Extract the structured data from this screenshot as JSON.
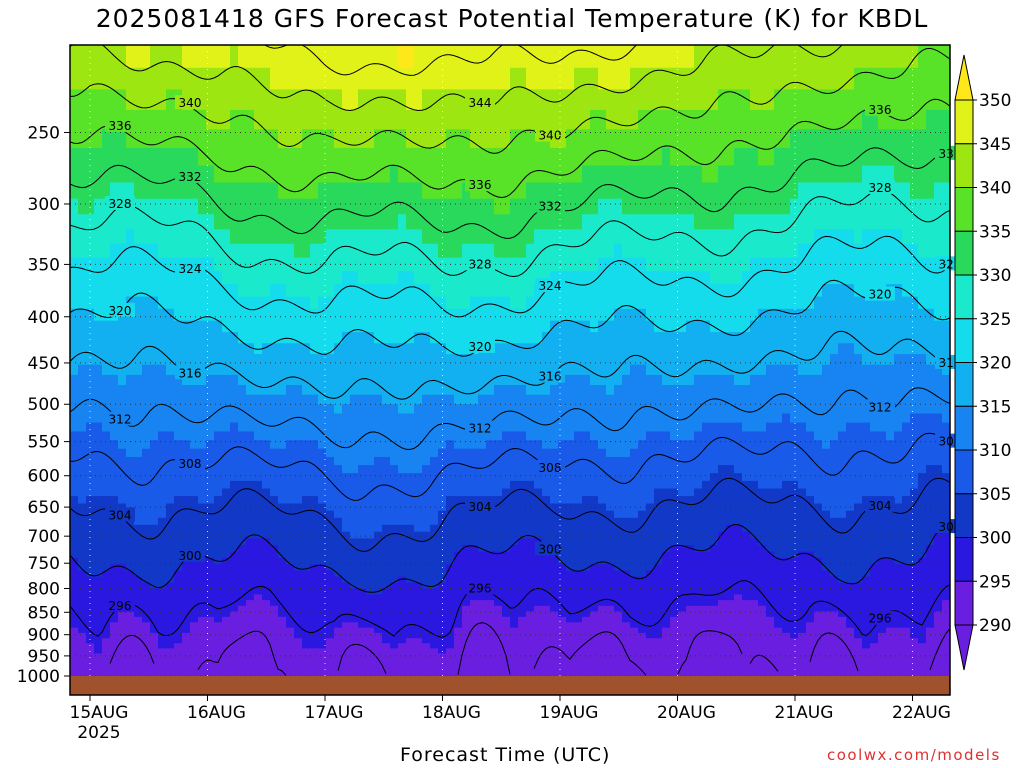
{
  "title": "2025081418 GFS Forecast Potential Temperature (K) for KBDL",
  "xlabel": "Forecast Time (UTC)",
  "credit": "coolwx.com/models",
  "chart_data": {
    "type": "heatmap",
    "title": "2025081418 GFS Forecast Potential Temperature (K) for KBDL",
    "xlabel": "Forecast Time (UTC)",
    "ylabel": "",
    "x_ticks": [
      "15AUG",
      "16AUG",
      "17AUG",
      "18AUG",
      "19AUG",
      "20AUG",
      "21AUG",
      "22AUG"
    ],
    "x_year_label": "2025",
    "y_ticks": [
      250,
      300,
      350,
      400,
      450,
      500,
      550,
      600,
      650,
      700,
      750,
      800,
      850,
      900,
      950,
      1000
    ],
    "y_scale": "log pressure (hPa), inverted",
    "ylim": [
      1000,
      200
    ],
    "colorbar": {
      "levels": [
        290,
        295,
        300,
        305,
        310,
        315,
        320,
        325,
        330,
        335,
        340,
        345,
        350
      ],
      "colors": [
        "#6a1ee0",
        "#2a18e0",
        "#1238c8",
        "#1a5ae8",
        "#1784f2",
        "#12b0f0",
        "#14dcec",
        "#1aeacb",
        "#28d95c",
        "#58e228",
        "#9ee612",
        "#e0f218",
        "#ffe81a"
      ],
      "extends": "both"
    },
    "contour_interval": 4,
    "contour_labels": [
      {
        "value": 344,
        "text": "344"
      },
      {
        "value": 340,
        "text": "340"
      },
      {
        "value": 336,
        "text": "336"
      },
      {
        "value": 332,
        "text": "332"
      },
      {
        "value": 328,
        "text": "328"
      },
      {
        "value": 324,
        "text": "324"
      },
      {
        "value": 320,
        "text": "320"
      },
      {
        "value": 316,
        "text": "316"
      },
      {
        "value": 312,
        "text": "312"
      },
      {
        "value": 308,
        "text": "308"
      },
      {
        "value": 304,
        "text": "304"
      },
      {
        "value": 300,
        "text": "300"
      },
      {
        "value": 296,
        "text": "296"
      }
    ],
    "profile_by_day": [
      {
        "day": "15AUG",
        "theta_surface": 293,
        "theta_250": 336
      },
      {
        "day": "16AUG",
        "theta_surface": 292,
        "theta_250": 338
      },
      {
        "day": "17AUG",
        "theta_surface": 293,
        "theta_250": 341
      },
      {
        "day": "18AUG",
        "theta_surface": 293,
        "theta_250": 341
      },
      {
        "day": "19AUG",
        "theta_surface": 291,
        "theta_250": 340
      },
      {
        "day": "20AUG",
        "theta_surface": 292,
        "theta_250": 338
      },
      {
        "day": "21AUG",
        "theta_surface": 292,
        "theta_250": 336
      },
      {
        "day": "22AUG",
        "theta_surface": 293,
        "theta_250": 334
      }
    ],
    "grid": true,
    "ground_color": "#a0522d"
  }
}
